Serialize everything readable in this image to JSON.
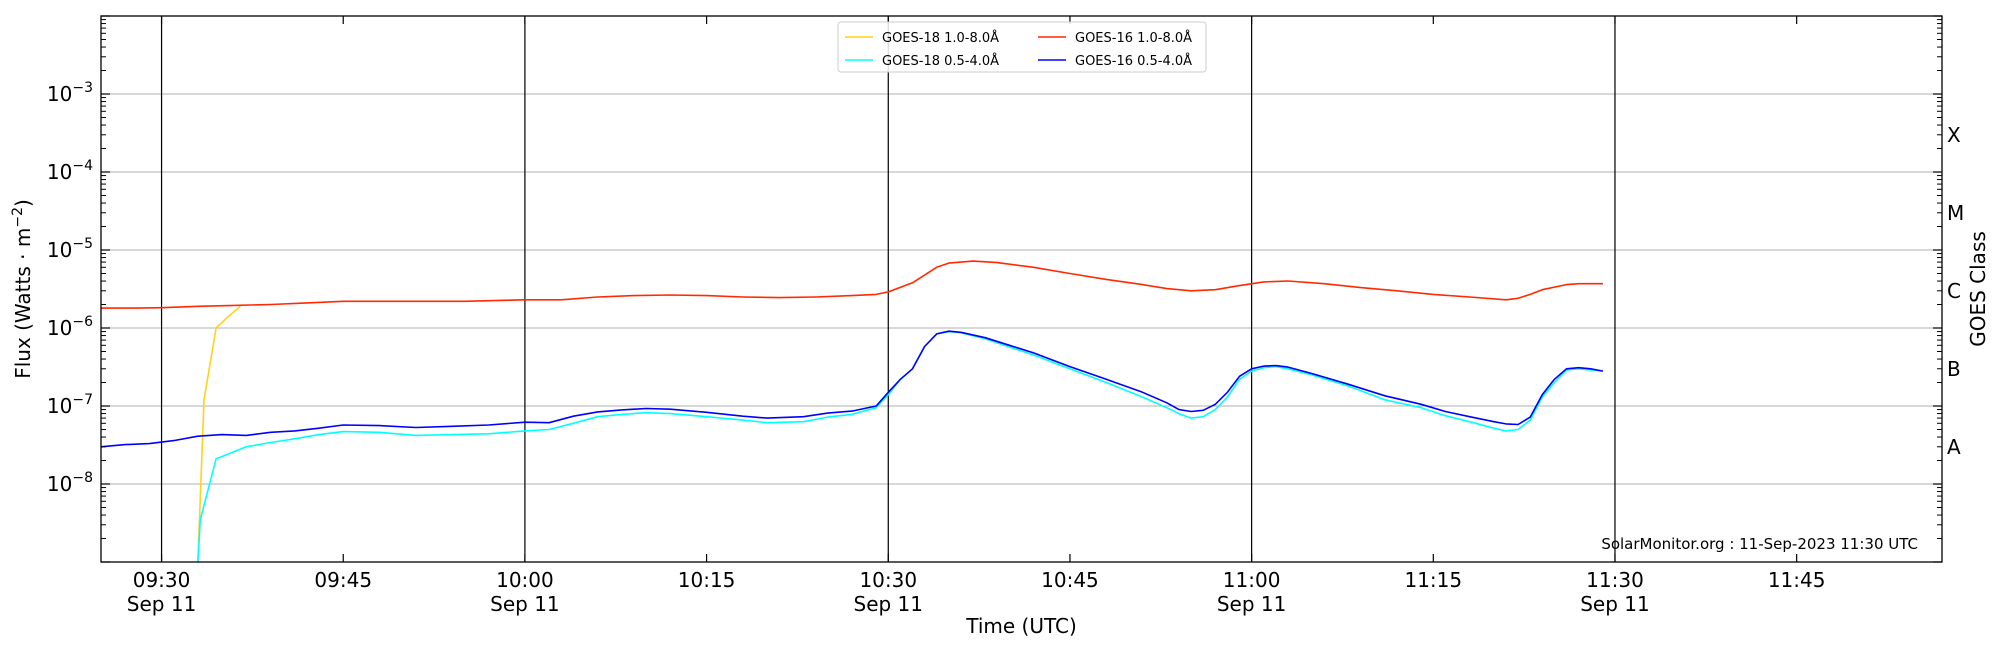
{
  "chart_data": {
    "type": "line",
    "x_axis": {
      "label": "Time (UTC)",
      "range": [
        "09:25",
        "11:57"
      ],
      "ticks": [
        {
          "time": "09:30",
          "line1": "09:30",
          "line2": "Sep 11"
        },
        {
          "time": "09:45",
          "line1": "09:45",
          "line2": ""
        },
        {
          "time": "10:00",
          "line1": "10:00",
          "line2": "Sep 11"
        },
        {
          "time": "10:15",
          "line1": "10:15",
          "line2": ""
        },
        {
          "time": "10:30",
          "line1": "10:30",
          "line2": "Sep 11"
        },
        {
          "time": "10:45",
          "line1": "10:45",
          "line2": ""
        },
        {
          "time": "11:00",
          "line1": "11:00",
          "line2": "Sep 11"
        },
        {
          "time": "11:15",
          "line1": "11:15",
          "line2": ""
        },
        {
          "time": "11:30",
          "line1": "11:30",
          "line2": "Sep 11"
        },
        {
          "time": "11:45",
          "line1": "11:45",
          "line2": ""
        }
      ],
      "vertical_lines": [
        "09:30",
        "10:00",
        "10:30",
        "11:00",
        "11:30"
      ]
    },
    "y_axis": {
      "label": "Flux (Watts · m",
      "label_sup": "−2",
      "label_close": ")",
      "scale": "log",
      "range": [
        1e-09,
        0.01
      ],
      "ticks": [
        {
          "exp": -8,
          "label": "10",
          "sup": "−8"
        },
        {
          "exp": -7,
          "label": "10",
          "sup": "−7"
        },
        {
          "exp": -6,
          "label": "10",
          "sup": "−6"
        },
        {
          "exp": -5,
          "label": "10",
          "sup": "−5"
        },
        {
          "exp": -4,
          "label": "10",
          "sup": "−4"
        },
        {
          "exp": -3,
          "label": "10",
          "sup": "−3"
        }
      ],
      "gridlines": [
        1e-08,
        1e-07,
        1e-06,
        1e-05,
        0.0001,
        0.001
      ]
    },
    "right_axis": {
      "label": "GOES Class",
      "classes": [
        {
          "label": "A",
          "flux": 3e-08
        },
        {
          "label": "B",
          "flux": 3e-07
        },
        {
          "label": "C",
          "flux": 3e-06
        },
        {
          "label": "M",
          "flux": 3e-05
        },
        {
          "label": "X",
          "flux": 0.0003
        }
      ]
    },
    "legend": {
      "placement": "top-center",
      "entries": [
        {
          "label": "GOES-18 1.0-8.0Å",
          "color": "#ffd21a"
        },
        {
          "label": "GOES-18 0.5-4.0Å",
          "color": "#00ffff"
        },
        {
          "label": "GOES-16 1.0-8.0Å",
          "color": "#ff2a00"
        },
        {
          "label": "GOES-16 0.5-4.0Å",
          "color": "#0000ff"
        }
      ]
    },
    "series": [
      {
        "name": "GOES-18 1.0-8.0Å",
        "color": "#ffd21a",
        "points": [
          [
            "09:33",
            1e-09
          ],
          [
            "09:33.5",
            1.2e-07
          ],
          [
            "09:34.5",
            1e-06
          ],
          [
            "09:35.5",
            1.4e-06
          ],
          [
            "09:36.5",
            1.9e-06
          ]
        ]
      },
      {
        "name": "GOES-18 0.5-4.0Å",
        "color": "#00ffff",
        "points": [
          [
            "09:33",
            1e-09
          ],
          [
            "09:33.2",
            3.5e-09
          ],
          [
            "09:34.5",
            2.1e-08
          ],
          [
            "09:36",
            2.6e-08
          ],
          [
            "09:37",
            3e-08
          ],
          [
            "09:39",
            3.4e-08
          ],
          [
            "09:41",
            3.8e-08
          ],
          [
            "09:43",
            4.3e-08
          ],
          [
            "09:45",
            4.7e-08
          ],
          [
            "09:48",
            4.6e-08
          ],
          [
            "09:51",
            4.2e-08
          ],
          [
            "09:54",
            4.3e-08
          ],
          [
            "09:57",
            4.4e-08
          ],
          [
            "10:00",
            4.8e-08
          ],
          [
            "10:02",
            5e-08
          ],
          [
            "10:04",
            6e-08
          ],
          [
            "10:06",
            7.3e-08
          ],
          [
            "10:08",
            7.8e-08
          ],
          [
            "10:10",
            8.2e-08
          ],
          [
            "10:12",
            8e-08
          ],
          [
            "10:15",
            7.3e-08
          ],
          [
            "10:18",
            6.6e-08
          ],
          [
            "10:20",
            6.1e-08
          ],
          [
            "10:23",
            6.3e-08
          ],
          [
            "10:25",
            7.2e-08
          ],
          [
            "10:27",
            7.8e-08
          ],
          [
            "10:29",
            9.5e-08
          ],
          [
            "10:30",
            1.4e-07
          ],
          [
            "10:31",
            2.2e-07
          ],
          [
            "10:32",
            3e-07
          ],
          [
            "10:33",
            5.8e-07
          ],
          [
            "10:34",
            8.4e-07
          ],
          [
            "10:35",
            9e-07
          ],
          [
            "10:36",
            8.7e-07
          ],
          [
            "10:38",
            7.3e-07
          ],
          [
            "10:40",
            5.7e-07
          ],
          [
            "10:42",
            4.5e-07
          ],
          [
            "10:45",
            3e-07
          ],
          [
            "10:48",
            2e-07
          ],
          [
            "10:51",
            1.3e-07
          ],
          [
            "10:53",
            9.5e-08
          ],
          [
            "10:54",
            8e-08
          ],
          [
            "10:55",
            7e-08
          ],
          [
            "10:56",
            7.3e-08
          ],
          [
            "10:57",
            9e-08
          ],
          [
            "10:58",
            1.3e-07
          ],
          [
            "10:59",
            2.2e-07
          ],
          [
            "11:00",
            2.8e-07
          ],
          [
            "11:01",
            3.1e-07
          ],
          [
            "11:02",
            3.2e-07
          ],
          [
            "11:03",
            3e-07
          ],
          [
            "11:05",
            2.5e-07
          ],
          [
            "11:08",
            1.8e-07
          ],
          [
            "11:11",
            1.2e-07
          ],
          [
            "11:14",
            9.5e-08
          ],
          [
            "11:16",
            7.5e-08
          ],
          [
            "11:18",
            6.3e-08
          ],
          [
            "11:20",
            5.2e-08
          ],
          [
            "11:21",
            4.8e-08
          ],
          [
            "11:22",
            5e-08
          ],
          [
            "11:23",
            6.6e-08
          ],
          [
            "11:24",
            1.3e-07
          ],
          [
            "11:25",
            2e-07
          ],
          [
            "11:26",
            2.9e-07
          ],
          [
            "11:27",
            3e-07
          ],
          [
            "11:28",
            2.9e-07
          ],
          [
            "11:29",
            2.8e-07
          ]
        ]
      },
      {
        "name": "GOES-16 1.0-8.0Å",
        "color": "#ff2a00",
        "points": [
          [
            "09:25",
            1.8e-06
          ],
          [
            "09:28",
            1.8e-06
          ],
          [
            "09:30",
            1.82e-06
          ],
          [
            "09:33",
            1.9e-06
          ],
          [
            "09:36",
            1.95e-06
          ],
          [
            "09:39",
            2e-06
          ],
          [
            "09:42",
            2.1e-06
          ],
          [
            "09:45",
            2.2e-06
          ],
          [
            "09:50",
            2.2e-06
          ],
          [
            "09:55",
            2.2e-06
          ],
          [
            "10:00",
            2.3e-06
          ],
          [
            "10:03",
            2.3e-06
          ],
          [
            "10:06",
            2.5e-06
          ],
          [
            "10:09",
            2.6e-06
          ],
          [
            "10:12",
            2.65e-06
          ],
          [
            "10:15",
            2.6e-06
          ],
          [
            "10:18",
            2.5e-06
          ],
          [
            "10:21",
            2.45e-06
          ],
          [
            "10:24",
            2.5e-06
          ],
          [
            "10:27",
            2.6e-06
          ],
          [
            "10:29",
            2.7e-06
          ],
          [
            "10:30",
            2.9e-06
          ],
          [
            "10:32",
            3.8e-06
          ],
          [
            "10:34",
            6e-06
          ],
          [
            "10:35",
            6.8e-06
          ],
          [
            "10:37",
            7.2e-06
          ],
          [
            "10:39",
            6.9e-06
          ],
          [
            "10:42",
            6e-06
          ],
          [
            "10:45",
            5e-06
          ],
          [
            "10:48",
            4.2e-06
          ],
          [
            "10:51",
            3.6e-06
          ],
          [
            "10:53",
            3.2e-06
          ],
          [
            "10:55",
            3e-06
          ],
          [
            "10:57",
            3.1e-06
          ],
          [
            "10:59",
            3.5e-06
          ],
          [
            "11:01",
            3.9e-06
          ],
          [
            "11:03",
            4e-06
          ],
          [
            "11:06",
            3.7e-06
          ],
          [
            "11:09",
            3.3e-06
          ],
          [
            "11:12",
            3e-06
          ],
          [
            "11:15",
            2.7e-06
          ],
          [
            "11:18",
            2.5e-06
          ],
          [
            "11:21",
            2.3e-06
          ],
          [
            "11:22",
            2.4e-06
          ],
          [
            "11:23",
            2.7e-06
          ],
          [
            "11:24",
            3.1e-06
          ],
          [
            "11:26",
            3.6e-06
          ],
          [
            "11:27",
            3.7e-06
          ],
          [
            "11:29",
            3.7e-06
          ]
        ]
      },
      {
        "name": "GOES-16 0.5-4.0Å",
        "color": "#0000ff",
        "points": [
          [
            "09:25",
            3e-08
          ],
          [
            "09:27",
            3.2e-08
          ],
          [
            "09:29",
            3.3e-08
          ],
          [
            "09:31",
            3.6e-08
          ],
          [
            "09:33",
            4.1e-08
          ],
          [
            "09:35",
            4.3e-08
          ],
          [
            "09:37",
            4.2e-08
          ],
          [
            "09:39",
            4.6e-08
          ],
          [
            "09:41",
            4.8e-08
          ],
          [
            "09:43",
            5.2e-08
          ],
          [
            "09:45",
            5.7e-08
          ],
          [
            "09:48",
            5.6e-08
          ],
          [
            "09:51",
            5.3e-08
          ],
          [
            "09:54",
            5.5e-08
          ],
          [
            "09:57",
            5.7e-08
          ],
          [
            "10:00",
            6.2e-08
          ],
          [
            "10:02",
            6.1e-08
          ],
          [
            "10:04",
            7.4e-08
          ],
          [
            "10:06",
            8.4e-08
          ],
          [
            "10:08",
            8.9e-08
          ],
          [
            "10:10",
            9.3e-08
          ],
          [
            "10:12",
            9.1e-08
          ],
          [
            "10:15",
            8.3e-08
          ],
          [
            "10:18",
            7.4e-08
          ],
          [
            "10:20",
            7e-08
          ],
          [
            "10:23",
            7.3e-08
          ],
          [
            "10:25",
            8.1e-08
          ],
          [
            "10:27",
            8.6e-08
          ],
          [
            "10:29",
            1e-07
          ],
          [
            "10:30",
            1.5e-07
          ],
          [
            "10:31",
            2.2e-07
          ],
          [
            "10:32",
            3e-07
          ],
          [
            "10:33",
            5.8e-07
          ],
          [
            "10:34",
            8.4e-07
          ],
          [
            "10:35",
            9.1e-07
          ],
          [
            "10:36",
            8.8e-07
          ],
          [
            "10:38",
            7.5e-07
          ],
          [
            "10:40",
            6e-07
          ],
          [
            "10:42",
            4.8e-07
          ],
          [
            "10:45",
            3.2e-07
          ],
          [
            "10:48",
            2.2e-07
          ],
          [
            "10:51",
            1.5e-07
          ],
          [
            "10:53",
            1.1e-07
          ],
          [
            "10:54",
            9e-08
          ],
          [
            "10:55",
            8.5e-08
          ],
          [
            "10:56",
            8.8e-08
          ],
          [
            "10:57",
            1.05e-07
          ],
          [
            "10:58",
            1.5e-07
          ],
          [
            "10:59",
            2.4e-07
          ],
          [
            "11:00",
            3e-07
          ],
          [
            "11:01",
            3.25e-07
          ],
          [
            "11:02",
            3.3e-07
          ],
          [
            "11:03",
            3.15e-07
          ],
          [
            "11:05",
            2.6e-07
          ],
          [
            "11:08",
            1.9e-07
          ],
          [
            "11:11",
            1.35e-07
          ],
          [
            "11:14",
            1.05e-07
          ],
          [
            "11:16",
            8.5e-08
          ],
          [
            "11:18",
            7.3e-08
          ],
          [
            "11:20",
            6.3e-08
          ],
          [
            "11:21",
            5.9e-08
          ],
          [
            "11:22",
            5.8e-08
          ],
          [
            "11:23",
            7.2e-08
          ],
          [
            "11:24",
            1.4e-07
          ],
          [
            "11:25",
            2.2e-07
          ],
          [
            "11:26",
            3e-07
          ],
          [
            "11:27",
            3.1e-07
          ],
          [
            "11:28",
            3e-07
          ],
          [
            "11:29",
            2.8e-07
          ]
        ]
      }
    ],
    "grid": true,
    "annotation": "SolarMonitor.org : 11-Sep-2023 11:30 UTC"
  }
}
